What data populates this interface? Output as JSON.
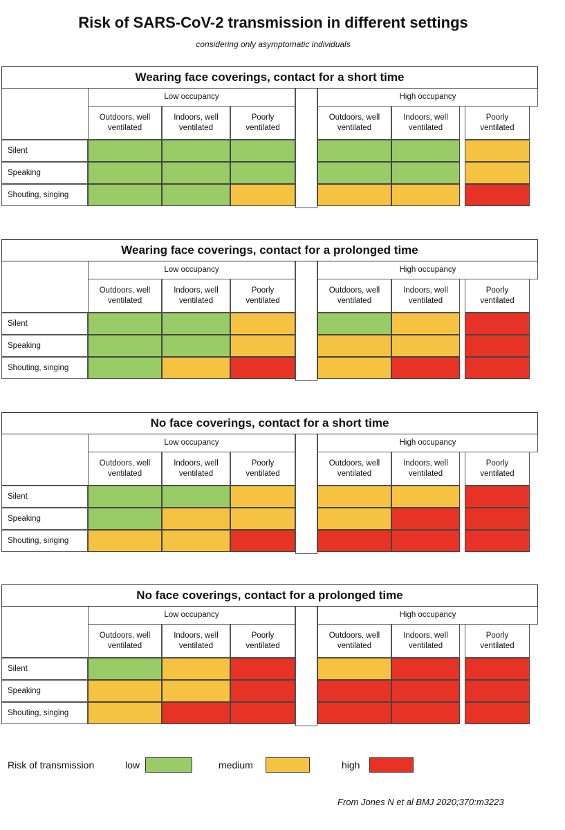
{
  "title": "Risk of SARS-CoV-2 transmission in different settings",
  "subtitle": "considering only asymptomatic individuals",
  "colors": {
    "low": "#99cc66",
    "medium": "#f5c242",
    "high": "#e63326"
  },
  "occupancy": [
    "Low occupancy",
    "High occupancy"
  ],
  "columns": [
    "Outdoors, well\nventilated",
    "Indoors, well\nventilated",
    "Poorly\nventilated"
  ],
  "rows": [
    "Silent",
    "Speaking",
    "Shouting, singing"
  ],
  "blocks": [
    {
      "title": "Wearing face coverings, contact for a short time",
      "risk": {
        "low_occupancy": [
          [
            "low",
            "low",
            "low"
          ],
          [
            "low",
            "low",
            "low"
          ],
          [
            "low",
            "low",
            "medium"
          ]
        ],
        "high_occupancy": [
          [
            "low",
            "low",
            "medium"
          ],
          [
            "low",
            "low",
            "medium"
          ],
          [
            "medium",
            "medium",
            "high"
          ]
        ]
      }
    },
    {
      "title": "Wearing face coverings, contact for a prolonged time",
      "risk": {
        "low_occupancy": [
          [
            "low",
            "low",
            "medium"
          ],
          [
            "low",
            "low",
            "medium"
          ],
          [
            "low",
            "medium",
            "high"
          ]
        ],
        "high_occupancy": [
          [
            "low",
            "medium",
            "high"
          ],
          [
            "medium",
            "medium",
            "high"
          ],
          [
            "medium",
            "high",
            "high"
          ]
        ]
      }
    },
    {
      "title": "No face coverings, contact for a short time",
      "risk": {
        "low_occupancy": [
          [
            "low",
            "low",
            "medium"
          ],
          [
            "low",
            "medium",
            "medium"
          ],
          [
            "medium",
            "medium",
            "high"
          ]
        ],
        "high_occupancy": [
          [
            "medium",
            "medium",
            "high"
          ],
          [
            "medium",
            "high",
            "high"
          ],
          [
            "high",
            "high",
            "high"
          ]
        ]
      }
    },
    {
      "title": "No face coverings, contact for a prolonged time",
      "risk": {
        "low_occupancy": [
          [
            "low",
            "medium",
            "high"
          ],
          [
            "medium",
            "medium",
            "high"
          ],
          [
            "medium",
            "high",
            "high"
          ]
        ],
        "high_occupancy": [
          [
            "medium",
            "high",
            "high"
          ],
          [
            "high",
            "high",
            "high"
          ],
          [
            "high",
            "high",
            "high"
          ]
        ]
      }
    }
  ],
  "legend": {
    "label": "Risk of transmission",
    "low": "low",
    "medium": "medium",
    "high": "high"
  },
  "source": "From Jones N et al BMJ 2020;370:m3223"
}
